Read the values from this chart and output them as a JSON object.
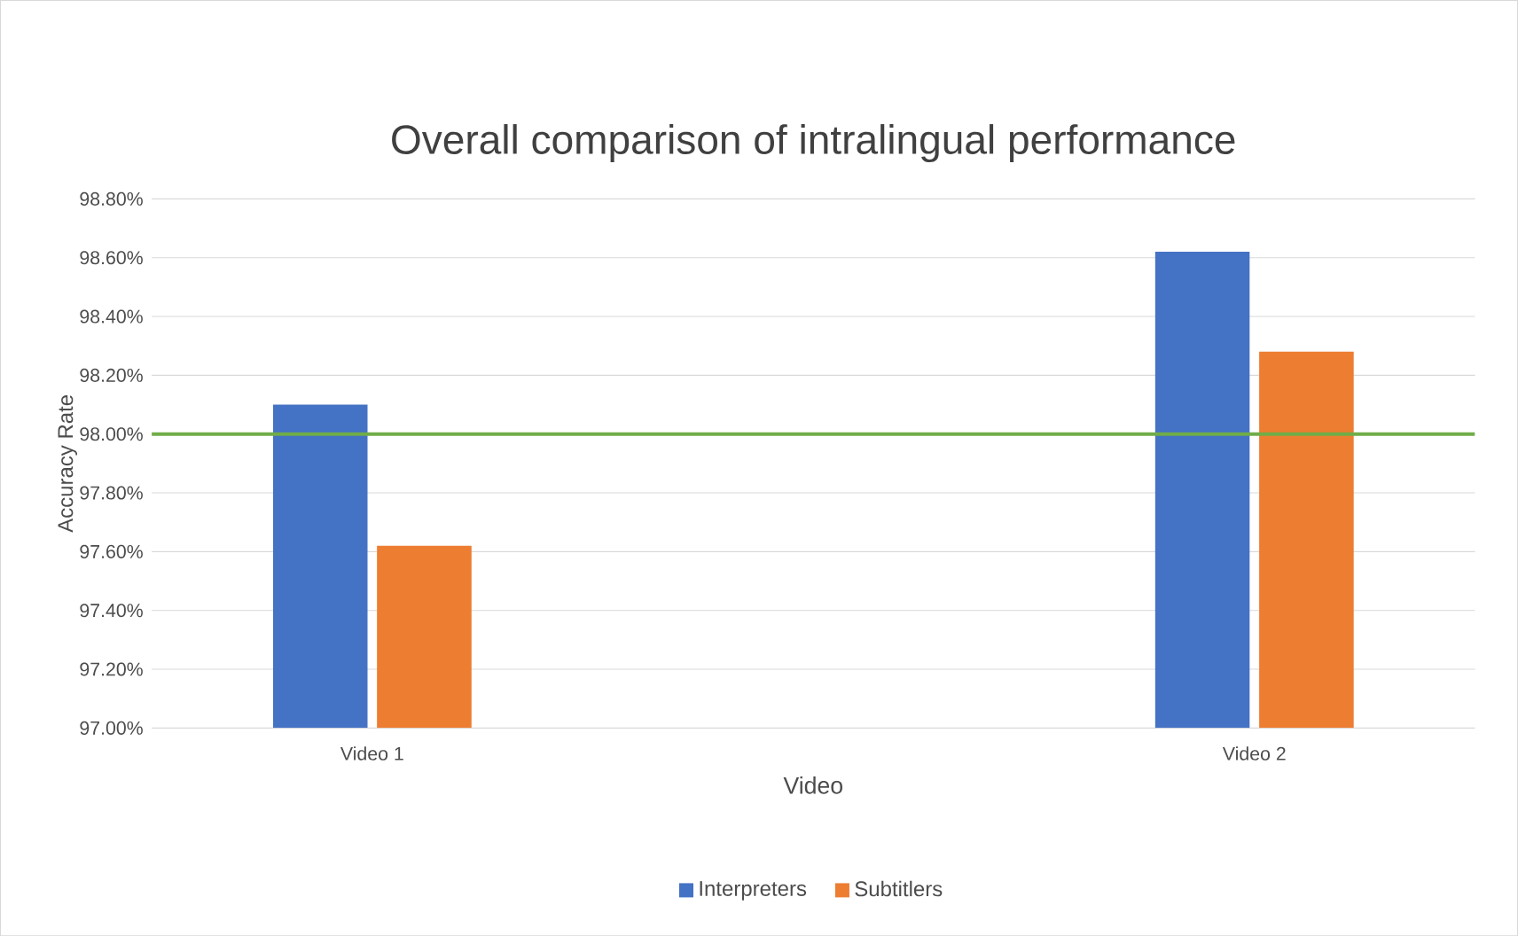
{
  "chart_data": {
    "type": "bar",
    "title": "Overall comparison of intralingual performance",
    "xlabel": "Video",
    "ylabel": "Accuracy Rate",
    "categories": [
      "Video 1",
      "Video 2"
    ],
    "series": [
      {
        "name": "Interpreters",
        "color": "#4472c4",
        "values": [
          98.1,
          98.62
        ]
      },
      {
        "name": "Subtitlers",
        "color": "#ed7d31",
        "values": [
          97.62,
          98.28
        ]
      }
    ],
    "ylim": [
      97.0,
      98.8
    ],
    "yticks": [
      {
        "value": 97.0,
        "label": "97.00%"
      },
      {
        "value": 97.2,
        "label": "97.20%"
      },
      {
        "value": 97.4,
        "label": "97.40%"
      },
      {
        "value": 97.6,
        "label": "97.60%"
      },
      {
        "value": 97.8,
        "label": "97.80%"
      },
      {
        "value": 98.0,
        "label": "98.00%"
      },
      {
        "value": 98.2,
        "label": "98.20%"
      },
      {
        "value": 98.4,
        "label": "98.40%"
      },
      {
        "value": 98.6,
        "label": "98.60%"
      },
      {
        "value": 98.8,
        "label": "98.80%"
      }
    ],
    "ref_lines": [
      {
        "axis": "y",
        "value": 98.0,
        "color": "#70ad47"
      }
    ],
    "grid": "y",
    "legend": "bottom"
  }
}
